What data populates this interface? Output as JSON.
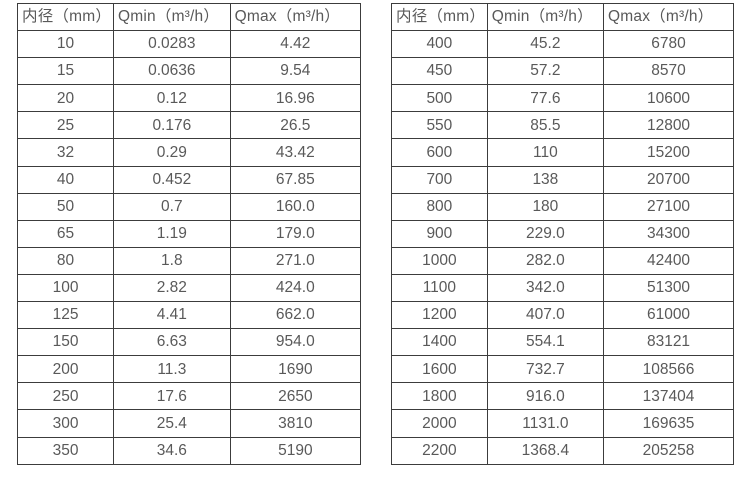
{
  "colors": {
    "background": "#ffffff",
    "text": "#595959",
    "border": "#3c3c3c"
  },
  "chart_data": [
    {
      "type": "table",
      "title": "",
      "columns": [
        "内径（mm）",
        "Qmin（m³/h）",
        "Qmax（m³/h）"
      ],
      "rows": [
        [
          "10",
          "0.0283",
          "4.42"
        ],
        [
          "15",
          "0.0636",
          "9.54"
        ],
        [
          "20",
          "0.12",
          "16.96"
        ],
        [
          "25",
          "0.176",
          "26.5"
        ],
        [
          "32",
          "0.29",
          "43.42"
        ],
        [
          "40",
          "0.452",
          "67.85"
        ],
        [
          "50",
          "0.7",
          "160.0"
        ],
        [
          "65",
          "1.19",
          "179.0"
        ],
        [
          "80",
          "1.8",
          "271.0"
        ],
        [
          "100",
          "2.82",
          "424.0"
        ],
        [
          "125",
          "4.41",
          "662.0"
        ],
        [
          "150",
          "6.63",
          "954.0"
        ],
        [
          "200",
          "11.3",
          "1690"
        ],
        [
          "250",
          "17.6",
          "2650"
        ],
        [
          "300",
          "25.4",
          "3810"
        ],
        [
          "350",
          "34.6",
          "5190"
        ]
      ]
    },
    {
      "type": "table",
      "title": "",
      "columns": [
        "内径（mm）",
        "Qmin（m³/h）",
        "Qmax（m³/h）"
      ],
      "rows": [
        [
          "400",
          "45.2",
          "6780"
        ],
        [
          "450",
          "57.2",
          "8570"
        ],
        [
          "500",
          "77.6",
          "10600"
        ],
        [
          "550",
          "85.5",
          "12800"
        ],
        [
          "600",
          "110",
          "15200"
        ],
        [
          "700",
          "138",
          "20700"
        ],
        [
          "800",
          "180",
          "27100"
        ],
        [
          "900",
          "229.0",
          "34300"
        ],
        [
          "1000",
          "282.0",
          "42400"
        ],
        [
          "1100",
          "342.0",
          "51300"
        ],
        [
          "1200",
          "407.0",
          "61000"
        ],
        [
          "1400",
          "554.1",
          "83121"
        ],
        [
          "1600",
          "732.7",
          "108566"
        ],
        [
          "1800",
          "916.0",
          "137404"
        ],
        [
          "2000",
          "1131.0",
          "169635"
        ],
        [
          "2200",
          "1368.4",
          "205258"
        ]
      ]
    }
  ]
}
